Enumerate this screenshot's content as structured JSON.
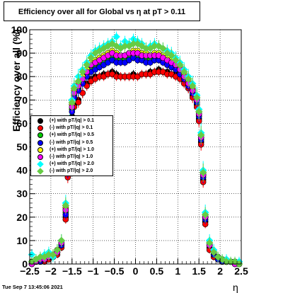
{
  "title": "Efficiency over all for Global vs   η at pT > 0.11",
  "footer": "Tue Sep  7 13:45:06 2021",
  "chart_data": {
    "type": "scatter",
    "title": "Efficiency over all for Global vs   η at pT > 0.11",
    "xlabel": "η",
    "ylabel": "Efficiency over all (%)",
    "xlim": [
      -2.5,
      2.5
    ],
    "ylim": [
      0,
      100
    ],
    "x_ticks": [
      -2.5,
      -2,
      -1.5,
      -1,
      -0.5,
      0,
      0.5,
      1,
      1.5,
      2,
      2.5
    ],
    "x_tick_labels": [
      "−2.5",
      "−2",
      "−1.5",
      "−1",
      "−0.5",
      "0",
      "0.5",
      "1",
      "1.5",
      "2",
      "2.5"
    ],
    "y_ticks": [
      0,
      10,
      20,
      30,
      40,
      50,
      60,
      70,
      80,
      90,
      100
    ],
    "y_tick_labels": [
      "0",
      "10",
      "20",
      "30",
      "40",
      "50",
      "60",
      "70",
      "80",
      "90",
      "100"
    ],
    "grid": true,
    "legend_position": "left-middle",
    "x": [
      -2.45,
      -2.35,
      -2.25,
      -2.15,
      -2.05,
      -1.95,
      -1.85,
      -1.75,
      -1.65,
      -1.6,
      -1.55,
      -1.5,
      -1.45,
      -1.35,
      -1.25,
      -1.15,
      -1.05,
      -0.95,
      -0.85,
      -0.75,
      -0.65,
      -0.55,
      -0.45,
      -0.35,
      -0.25,
      -0.15,
      -0.05,
      0.05,
      0.15,
      0.25,
      0.35,
      0.45,
      0.55,
      0.65,
      0.75,
      0.85,
      0.95,
      1.05,
      1.15,
      1.25,
      1.35,
      1.45,
      1.5,
      1.55,
      1.6,
      1.65,
      1.75,
      1.85,
      1.95,
      2.05,
      2.15,
      2.25,
      2.35,
      2.45
    ],
    "series": [
      {
        "name": "(+) with pT/|q| > 0.1",
        "color": "#000000",
        "marker": "circle",
        "values": [
          0,
          1,
          1,
          2,
          2,
          3,
          4,
          7,
          20,
          38,
          55,
          63,
          68,
          70,
          73,
          77,
          79,
          80,
          80,
          81,
          81,
          82,
          81,
          80,
          80,
          80,
          81,
          80,
          81,
          81,
          82,
          82,
          83,
          82,
          82,
          81,
          81,
          80,
          78,
          75,
          72,
          68,
          62,
          52,
          36,
          18,
          7,
          4,
          2,
          1,
          1,
          1,
          0,
          0
        ]
      },
      {
        "name": "(-) with pT/|q| > 0.1",
        "color": "#ff0000",
        "marker": "circle",
        "values": [
          0,
          1,
          1,
          1,
          2,
          3,
          4,
          7,
          19,
          37,
          54,
          62,
          67,
          69,
          73,
          76,
          78,
          79,
          80,
          80,
          81,
          81,
          80,
          80,
          80,
          80,
          80,
          80,
          81,
          81,
          81,
          82,
          82,
          82,
          81,
          81,
          80,
          79,
          77,
          75,
          71,
          67,
          61,
          51,
          35,
          17,
          6,
          3,
          2,
          1,
          1,
          1,
          0,
          0
        ]
      },
      {
        "name": "(+) with pT/|q| > 0.5",
        "color": "#00cc00",
        "marker": "circle",
        "values": [
          1,
          1,
          2,
          2,
          3,
          4,
          5,
          8,
          22,
          40,
          57,
          66,
          72,
          75,
          78,
          81,
          83,
          84,
          85,
          86,
          87,
          88,
          88,
          87,
          87,
          88,
          89,
          88,
          88,
          87,
          87,
          88,
          88,
          87,
          86,
          85,
          84,
          82,
          80,
          77,
          74,
          70,
          64,
          54,
          38,
          20,
          8,
          4,
          3,
          2,
          1,
          1,
          1,
          0
        ]
      },
      {
        "name": "(-) with pT/|q| > 0.5",
        "color": "#0000ff",
        "marker": "circle",
        "values": [
          0,
          1,
          1,
          2,
          3,
          4,
          5,
          8,
          21,
          39,
          56,
          65,
          71,
          74,
          77,
          80,
          82,
          83,
          84,
          85,
          86,
          87,
          86,
          86,
          86,
          87,
          88,
          87,
          87,
          86,
          86,
          87,
          87,
          86,
          85,
          84,
          83,
          81,
          79,
          76,
          73,
          69,
          63,
          53,
          37,
          19,
          8,
          4,
          2,
          1,
          1,
          1,
          0,
          0
        ]
      },
      {
        "name": "(+) with pT/|q| > 1.0",
        "color": "#ffff00",
        "marker": "circle",
        "values": [
          1,
          2,
          2,
          3,
          3,
          4,
          6,
          9,
          24,
          42,
          58,
          68,
          74,
          77,
          80,
          83,
          86,
          87,
          88,
          89,
          90,
          91,
          90,
          89,
          89,
          90,
          91,
          91,
          90,
          90,
          89,
          90,
          90,
          89,
          88,
          87,
          86,
          84,
          81,
          78,
          75,
          71,
          65,
          55,
          39,
          21,
          9,
          5,
          3,
          2,
          1,
          1,
          1,
          0
        ]
      },
      {
        "name": "(-) with pT/|q| > 1.0",
        "color": "#ff00ff",
        "marker": "circle",
        "values": [
          0,
          1,
          2,
          2,
          3,
          4,
          5,
          9,
          23,
          41,
          57,
          67,
          73,
          76,
          79,
          82,
          85,
          86,
          87,
          88,
          89,
          90,
          89,
          89,
          89,
          90,
          90,
          90,
          89,
          89,
          89,
          89,
          89,
          88,
          87,
          86,
          85,
          83,
          80,
          77,
          74,
          70,
          64,
          54,
          38,
          20,
          8,
          5,
          3,
          2,
          1,
          1,
          0,
          0
        ]
      },
      {
        "name": "(+) with pT/|q| > 2.0",
        "color": "#00ffff",
        "marker": "diamond",
        "values": [
          4,
          2,
          3,
          4,
          5,
          3,
          6,
          10,
          26,
          44,
          60,
          70,
          76,
          80,
          83,
          86,
          89,
          91,
          92,
          93,
          94,
          95,
          97,
          93,
          95,
          94,
          96,
          95,
          94,
          92,
          93,
          94,
          93,
          92,
          91,
          90,
          88,
          86,
          83,
          80,
          77,
          72,
          66,
          56,
          40,
          22,
          10,
          6,
          3,
          2,
          2,
          1,
          1,
          1
        ]
      },
      {
        "name": "(-) with pT/|q| > 2.0",
        "color": "#66cc44",
        "marker": "diamond",
        "values": [
          1,
          2,
          3,
          3,
          4,
          4,
          6,
          10,
          25,
          43,
          59,
          69,
          75,
          78,
          82,
          85,
          88,
          90,
          91,
          92,
          93,
          94,
          93,
          92,
          93,
          93,
          94,
          94,
          93,
          92,
          92,
          93,
          93,
          92,
          90,
          89,
          87,
          85,
          82,
          79,
          76,
          71,
          65,
          55,
          39,
          21,
          9,
          5,
          3,
          2,
          1,
          1,
          1,
          0
        ]
      }
    ]
  }
}
